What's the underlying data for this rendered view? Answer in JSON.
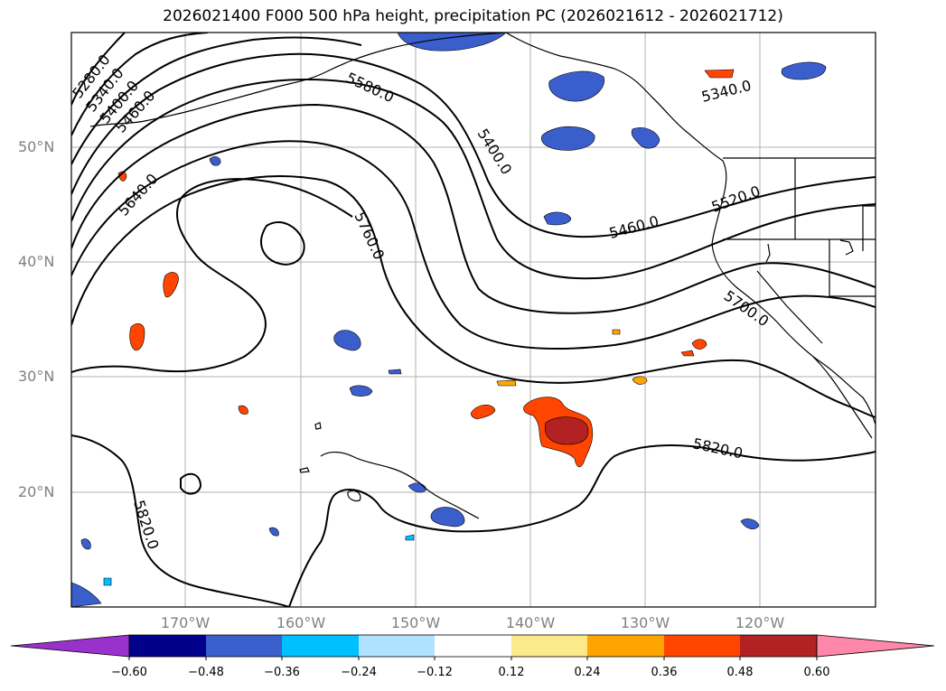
{
  "title": "2026021400 F000 500 hPa height, precipitation PC (2026021612 - 2026021712)",
  "map": {
    "lat_labels": [
      "50°N",
      "40°N",
      "30°N",
      "20°N"
    ],
    "lon_labels": [
      "170°W",
      "160°W",
      "150°W",
      "140°W",
      "130°W",
      "120°W"
    ],
    "contour_labels": [
      "5280.0",
      "5340.0",
      "5400.0",
      "5460.0",
      "5580.0",
      "5640.0",
      "5400.0",
      "5760.0",
      "5340.0",
      "5520.0",
      "5460.0",
      "5700.0",
      "5820.0",
      "5820.0"
    ]
  },
  "colorbar": {
    "tick_labels": [
      "−0.60",
      "−0.48",
      "−0.36",
      "−0.24",
      "−0.12",
      "0.12",
      "0.24",
      "0.36",
      "0.48",
      "0.60"
    ],
    "colors": [
      "#9932cc",
      "#00008b",
      "#3a5fcd",
      "#00bfff",
      "#b0e2ff",
      "#ffffff",
      "#fce98a",
      "#ffa500",
      "#ff4500",
      "#b22222",
      "#ff88aa"
    ]
  }
}
